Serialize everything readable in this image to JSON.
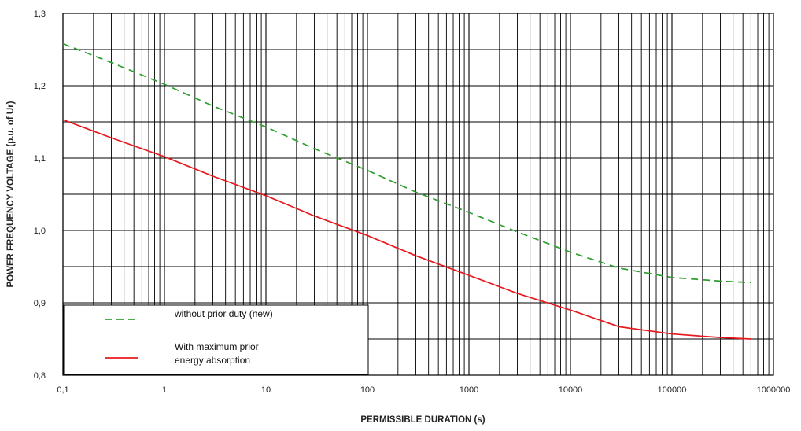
{
  "chart_data": {
    "type": "line",
    "title": "",
    "xlabel": "PERMISSIBLE DURATION (s)",
    "ylabel": "POWER FREQUENCY VOLTAGE (p.u. of Ur)",
    "x_scale": "log",
    "xlim": [
      0.1,
      1000000
    ],
    "ylim": [
      0.8,
      1.3
    ],
    "grid": true,
    "x_ticks": [
      0.1,
      1,
      10,
      100,
      1000,
      10000,
      100000,
      1000000
    ],
    "x_tick_labels": [
      "0,1",
      "1",
      "10",
      "100",
      "1000",
      "10000",
      "100000",
      "1000000"
    ],
    "y_ticks": [
      0.8,
      0.9,
      1.0,
      1.1,
      1.2,
      1.3
    ],
    "y_tick_labels": [
      "0,8",
      "0,9",
      "1,0",
      "1,1",
      "1,2",
      "1,3"
    ],
    "legend_position": "bottom-left",
    "series": [
      {
        "name": "without prior duty (new)",
        "name_lines": [
          "without prior duty (new)"
        ],
        "color": "#2e9e2e",
        "dash": "dashed",
        "x": [
          0.1,
          0.3,
          1,
          3,
          10,
          30,
          100,
          300,
          1000,
          3000,
          10000,
          30000,
          100000,
          300000,
          600000
        ],
        "y": [
          1.258,
          1.232,
          1.202,
          1.172,
          1.143,
          1.113,
          1.083,
          1.053,
          1.025,
          0.998,
          0.97,
          0.948,
          0.935,
          0.93,
          0.928
        ]
      },
      {
        "name": "With maximum prior energy absorption",
        "name_lines": [
          "With maximum prior",
          " energy absorption"
        ],
        "color": "#e8191e",
        "dash": "solid",
        "x": [
          0.1,
          0.3,
          1,
          3,
          10,
          30,
          100,
          300,
          1000,
          3000,
          10000,
          30000,
          100000,
          300000,
          600000
        ],
        "y": [
          1.153,
          1.128,
          1.102,
          1.075,
          1.048,
          1.02,
          0.993,
          0.965,
          0.938,
          0.913,
          0.89,
          0.867,
          0.857,
          0.852,
          0.85
        ]
      }
    ]
  }
}
